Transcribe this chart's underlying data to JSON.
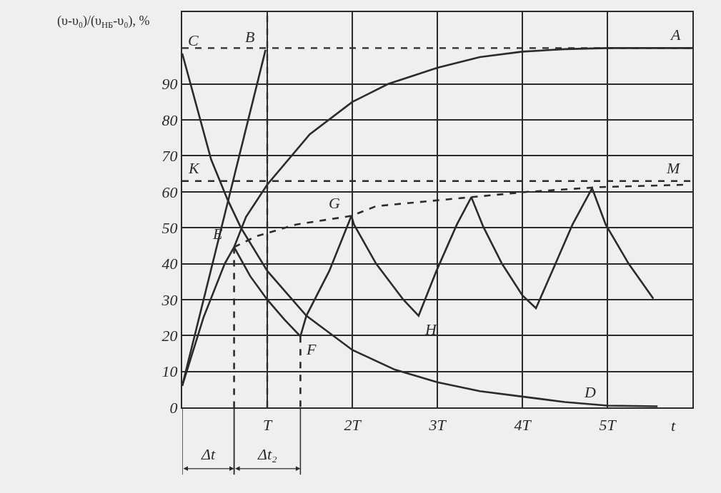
{
  "chart_data": {
    "type": "line",
    "ylabel": "(υ-υ₀)/(υ$_{НБ}$-υ₀), %",
    "xlabel": "t",
    "xlim": [
      0,
      6
    ],
    "ylim": [
      0,
      110
    ],
    "xticks": [
      {
        "value": 1,
        "label": "T"
      },
      {
        "value": 2,
        "label": "2T"
      },
      {
        "value": 3,
        "label": "3T"
      },
      {
        "value": 4,
        "label": "4T"
      },
      {
        "value": 5,
        "label": "5T"
      }
    ],
    "yticks": [
      0,
      10,
      20,
      30,
      40,
      50,
      60,
      70,
      80,
      90
    ],
    "grid": true,
    "marker": "none",
    "series": [
      {
        "color": "#2b2b2b",
        "line_style": "solid",
        "x": [
          0,
          0.25,
          0.5,
          0.61,
          0.75,
          1,
          1.5,
          2,
          2.42,
          3,
          3.5,
          4,
          4.5,
          5,
          6
        ],
        "values": [
          6,
          25,
          40,
          44.6,
          53,
          62,
          76,
          85,
          90,
          94.5,
          97.5,
          99,
          99.7,
          100,
          100
        ]
      },
      {
        "color": "#2b2b2b",
        "line_style": "solid",
        "x": [
          0,
          0.98
        ],
        "values": [
          6,
          99.5
        ]
      },
      {
        "color": "#2b2b2b",
        "line_style": "solid",
        "x": [
          0,
          0.34,
          0.53,
          0.69,
          1,
          1.46,
          2,
          2.5,
          3,
          3.5,
          4,
          4.5,
          5,
          5.59
        ],
        "values": [
          98.5,
          69,
          58,
          50,
          38,
          25.5,
          16,
          10.5,
          7,
          4.5,
          3,
          1.5,
          0.5,
          0.3
        ]
      },
      {
        "color": "#2b2b2b",
        "line_style": "solid",
        "x": [
          0.61,
          0.8,
          1,
          1.2,
          1.39,
          1.46,
          1.73,
          1.99,
          2.02,
          2.28,
          2.6,
          2.78,
          2.99,
          3.23,
          3.4,
          3.54,
          3.76,
          4.0,
          4.16,
          4.39,
          4.59,
          4.82,
          4.98,
          5.25,
          5.54
        ],
        "values": [
          44.6,
          36.5,
          30,
          24.5,
          19.8,
          25.5,
          38,
          53.3,
          50.9,
          40,
          30,
          25.5,
          38,
          50.9,
          58.5,
          50.3,
          40,
          31.2,
          27.6,
          40,
          50.9,
          61,
          50.9,
          40,
          30.3
        ]
      },
      {
        "color": "#2b2b2b",
        "line_style": "dashed",
        "x": [
          0.61,
          0.87,
          1.34,
          1.99,
          2.28,
          3.39,
          4.07,
          4.91,
          5.96
        ],
        "values": [
          44.6,
          47.6,
          50.9,
          53.3,
          56,
          58.5,
          60,
          61.3,
          62
        ]
      },
      {
        "color": "#2b2b2b",
        "line_style": "dashed",
        "x": [
          0.61,
          0.61
        ],
        "values": [
          44.6,
          0
        ]
      },
      {
        "color": "#2b2b2b",
        "line_style": "dashed",
        "x": [
          1.39,
          1.39
        ],
        "values": [
          19.8,
          0
        ]
      }
    ],
    "ref_lines": [
      {
        "axis": "y",
        "value": 100,
        "color": "#2b2b2b",
        "line_style": "dashed"
      },
      {
        "axis": "y",
        "value": 63,
        "color": "#2b2b2b",
        "line_style": "dashed"
      },
      {
        "axis": "x",
        "value": 1,
        "color": "#2b2b2b",
        "line_style": "dashed"
      }
    ],
    "annotations": [
      {
        "text": "C",
        "x": 0,
        "y": 98.5
      },
      {
        "text": "B",
        "x": 0.98,
        "y": 99.5
      },
      {
        "text": "A",
        "x": 6,
        "y": 100
      },
      {
        "text": "K",
        "x": 0,
        "y": 63
      },
      {
        "text": "M",
        "x": 6,
        "y": 63
      },
      {
        "text": "E",
        "x": 0.61,
        "y": 44.6
      },
      {
        "text": "G",
        "x": 1.99,
        "y": 53.3
      },
      {
        "text": "F",
        "x": 1.39,
        "y": 19.8
      },
      {
        "text": "H",
        "x": 2.78,
        "y": 25.5
      },
      {
        "text": "D",
        "x": 5,
        "y": 0.5
      },
      "Δt",
      "Δt₂"
    ]
  }
}
